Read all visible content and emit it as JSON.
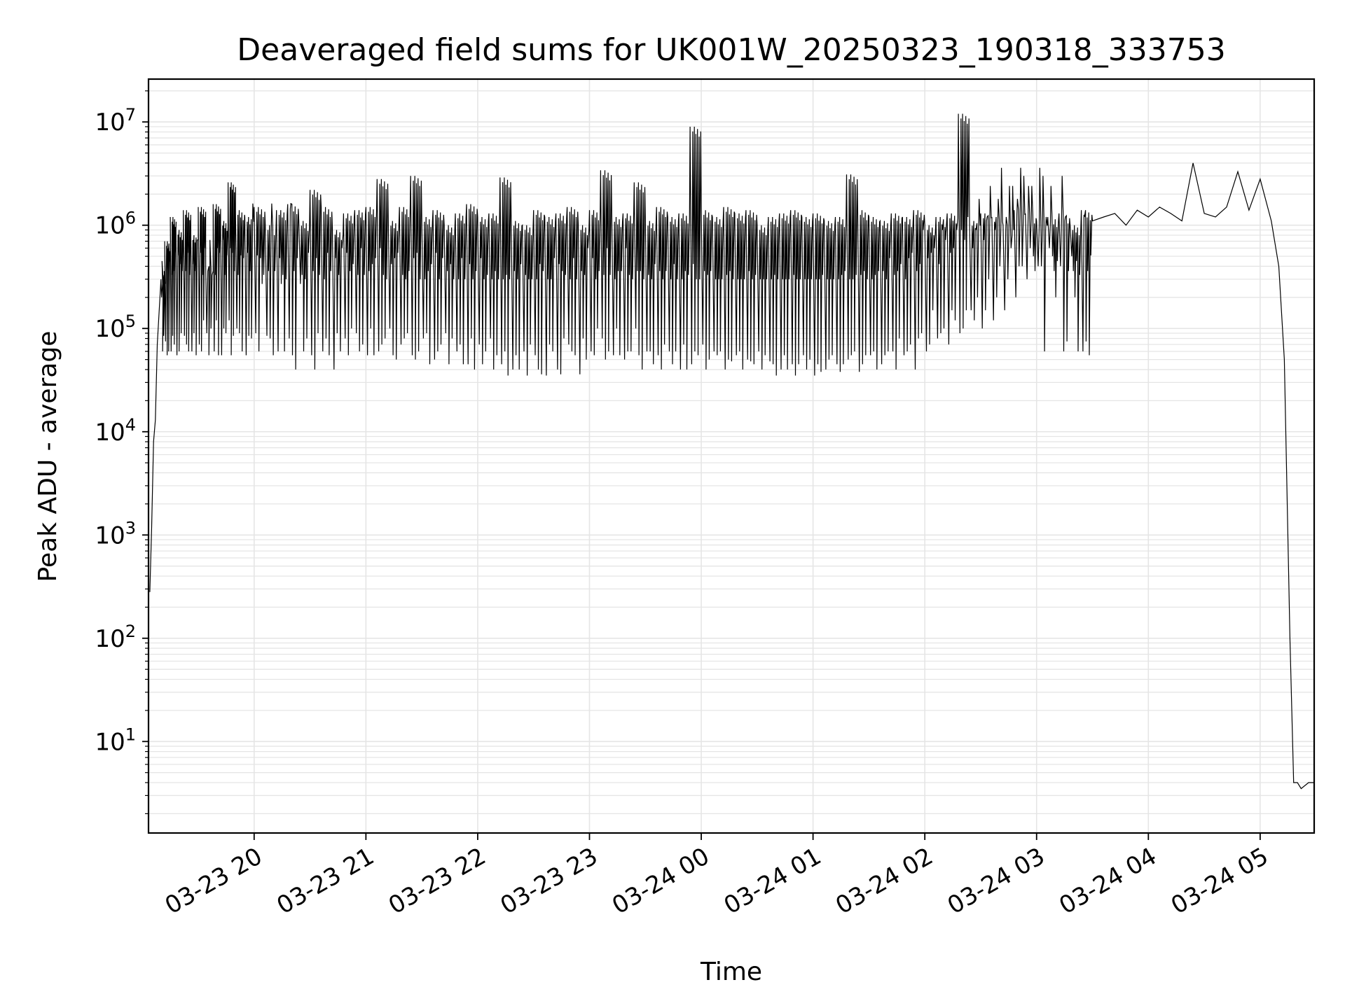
{
  "chart_data": {
    "type": "line",
    "title": "Deaveraged field sums for UK001W_20250323_190318_333753",
    "xlabel": "Time",
    "ylabel": "Peak ADU - average",
    "yscale": "log",
    "ylim": [
      1.3,
      26000000
    ],
    "xlim": [
      "2025-03-23 19:03:18",
      "2025-03-24 05:29:00"
    ],
    "grid": true,
    "legend": "none",
    "line_color": "#000000",
    "grid_color": "#e5e5e5",
    "x_tick_labels": [
      "03-23 20",
      "03-23 21",
      "03-23 22",
      "03-23 23",
      "03-24 00",
      "03-24 01",
      "03-24 02",
      "03-24 03",
      "03-24 04",
      "03-24 05"
    ],
    "x_ticks": [
      "2025-03-23 20:00",
      "2025-03-23 21:00",
      "2025-03-23 22:00",
      "2025-03-23 23:00",
      "2025-03-24 00:00",
      "2025-03-24 01:00",
      "2025-03-24 02:00",
      "2025-03-24 03:00",
      "2025-03-24 04:00",
      "2025-03-24 05:00"
    ],
    "y_ticks": [
      {
        "base": "10",
        "exp": "1",
        "value": 10
      },
      {
        "base": "10",
        "exp": "2",
        "value": 100
      },
      {
        "base": "10",
        "exp": "3",
        "value": 1000
      },
      {
        "base": "10",
        "exp": "4",
        "value": 10000
      },
      {
        "base": "10",
        "exp": "5",
        "value": 100000
      },
      {
        "base": "10",
        "exp": "6",
        "value": 1000000
      },
      {
        "base": "10",
        "exp": "7",
        "value": 10000000
      }
    ],
    "series": [
      {
        "x": [
          "2025-03-23 19:04",
          "2025-03-23 19:05",
          "2025-03-23 19:06",
          "2025-03-23 19:07",
          "2025-03-23 19:08",
          "2025-03-23 19:10",
          "2025-03-23 19:12",
          "2025-03-23 19:15",
          "2025-03-23 19:18",
          "2025-03-23 19:22",
          "2025-03-23 19:26",
          "2025-03-23 19:30",
          "2025-03-23 19:34",
          "2025-03-23 19:38",
          "2025-03-23 19:42",
          "2025-03-23 19:46",
          "2025-03-23 19:50",
          "2025-03-23 19:55",
          "2025-03-23 20:00",
          "2025-03-23 20:06",
          "2025-03-23 20:12",
          "2025-03-23 20:18",
          "2025-03-23 20:24",
          "2025-03-23 20:30",
          "2025-03-23 20:36",
          "2025-03-23 20:42",
          "2025-03-23 20:48",
          "2025-03-23 20:54",
          "2025-03-23 21:00",
          "2025-03-23 21:06",
          "2025-03-23 21:12",
          "2025-03-23 21:18",
          "2025-03-23 21:24",
          "2025-03-23 21:30",
          "2025-03-23 21:36",
          "2025-03-23 21:42",
          "2025-03-23 21:48",
          "2025-03-23 21:54",
          "2025-03-23 22:00",
          "2025-03-23 22:06",
          "2025-03-23 22:12",
          "2025-03-23 22:18",
          "2025-03-23 22:24",
          "2025-03-23 22:30",
          "2025-03-23 22:36",
          "2025-03-23 22:42",
          "2025-03-23 22:48",
          "2025-03-23 22:54",
          "2025-03-23 23:00",
          "2025-03-23 23:06",
          "2025-03-23 23:12",
          "2025-03-23 23:18",
          "2025-03-23 23:24",
          "2025-03-23 23:30",
          "2025-03-23 23:36",
          "2025-03-23 23:42",
          "2025-03-23 23:48",
          "2025-03-23 23:54",
          "2025-03-24 00:00",
          "2025-03-24 00:06",
          "2025-03-24 00:12",
          "2025-03-24 00:18",
          "2025-03-24 00:24",
          "2025-03-24 00:30",
          "2025-03-24 00:36",
          "2025-03-24 00:42",
          "2025-03-24 00:48",
          "2025-03-24 00:54",
          "2025-03-24 01:00",
          "2025-03-24 01:06",
          "2025-03-24 01:12",
          "2025-03-24 01:18",
          "2025-03-24 01:24",
          "2025-03-24 01:30",
          "2025-03-24 01:36",
          "2025-03-24 01:42",
          "2025-03-24 01:48",
          "2025-03-24 01:54",
          "2025-03-24 02:00",
          "2025-03-24 02:06",
          "2025-03-24 02:12",
          "2025-03-24 02:18",
          "2025-03-24 02:24",
          "2025-03-24 02:30",
          "2025-03-24 02:36",
          "2025-03-24 02:42",
          "2025-03-24 02:48",
          "2025-03-24 02:54",
          "2025-03-24 03:00",
          "2025-03-24 03:06",
          "2025-03-24 03:12",
          "2025-03-24 03:18",
          "2025-03-24 03:24",
          "2025-03-24 03:30",
          "2025-03-24 03:36",
          "2025-03-24 03:42",
          "2025-03-24 03:48",
          "2025-03-24 03:54",
          "2025-03-24 04:00",
          "2025-03-24 04:06",
          "2025-03-24 04:12",
          "2025-03-24 04:18",
          "2025-03-24 04:24",
          "2025-03-24 04:30",
          "2025-03-24 04:36",
          "2025-03-24 04:42",
          "2025-03-24 04:48",
          "2025-03-24 04:54",
          "2025-03-24 05:00",
          "2025-03-24 05:06",
          "2025-03-24 05:10",
          "2025-03-24 05:13",
          "2025-03-24 05:16",
          "2025-03-24 05:18",
          "2025-03-24 05:20",
          "2025-03-24 05:22",
          "2025-03-24 05:26",
          "2025-03-24 05:29"
        ],
        "y": [
          280,
          1200,
          8000,
          13000,
          70000,
          300000,
          700000,
          1200000,
          900000,
          1400000,
          800000,
          1500000,
          400000,
          1600000,
          1100000,
          2600000,
          1400000,
          1200000,
          1500000,
          1000000,
          1400000,
          1600000,
          1100000,
          2200000,
          1500000,
          900000,
          1300000,
          1400000,
          1500000,
          2800000,
          1100000,
          1500000,
          3000000,
          1200000,
          1400000,
          1000000,
          1300000,
          1600000,
          1200000,
          1300000,
          2900000,
          1100000,
          1000000,
          1400000,
          1200000,
          1300000,
          1500000,
          1000000,
          1400000,
          3400000,
          1200000,
          1300000,
          2600000,
          1100000,
          1500000,
          1200000,
          1300000,
          9000000,
          1400000,
          1200000,
          1500000,
          1300000,
          1400000,
          1000000,
          1200000,
          1300000,
          1400000,
          1200000,
          1300000,
          1100000,
          1200000,
          3100000,
          1400000,
          1200000,
          1100000,
          1300000,
          1200000,
          1400000,
          1000000,
          1200000,
          1300000,
          12000000,
          1100000,
          1300000,
          1200000,
          1000000,
          1400000,
          1300000,
          1100000,
          1200000,
          1300000,
          1000000,
          1400000,
          1100000,
          1200000,
          1300000,
          1000000,
          1400000,
          1200000,
          1500000,
          1300000,
          1100000,
          4000000,
          1300000,
          1200000,
          1500000,
          3300000,
          1400000,
          2800000,
          1100000,
          400000,
          50000,
          100,
          4,
          4,
          3.5,
          4,
          4
        ],
        "minima": [
          60000,
          200000,
          75000,
          60000,
          55000,
          85000,
          60000,
          70000,
          90000,
          60000,
          55000,
          120000,
          100000,
          55000,
          90000,
          85000,
          60000,
          80000,
          270000,
          55000,
          60000,
          40000,
          80000,
          90000,
          55000,
          60000,
          100000,
          70000,
          55000,
          80000,
          50000,
          90000,
          60000,
          45000,
          70000,
          80000,
          45000,
          40000,
          60000,
          55000,
          35000,
          40000,
          70000,
          36000,
          60000,
          80000,
          55000,
          50000,
          100000,
          60000,
          55000,
          60000,
          40000,
          45000,
          70000,
          60000,
          40000,
          55000,
          50000,
          60000,
          48000,
          40000,
          45000,
          55000,
          35000,
          40000,
          45000,
          50000,
          38000,
          55000,
          45000,
          60000,
          55000,
          40000,
          60000,
          80000,
          70000,
          90000,
          150000,
          100000,
          120000,
          150000,
          200000,
          300000,
          400000,
          600000,
          400000,
          500000
        ]
      }
    ]
  }
}
